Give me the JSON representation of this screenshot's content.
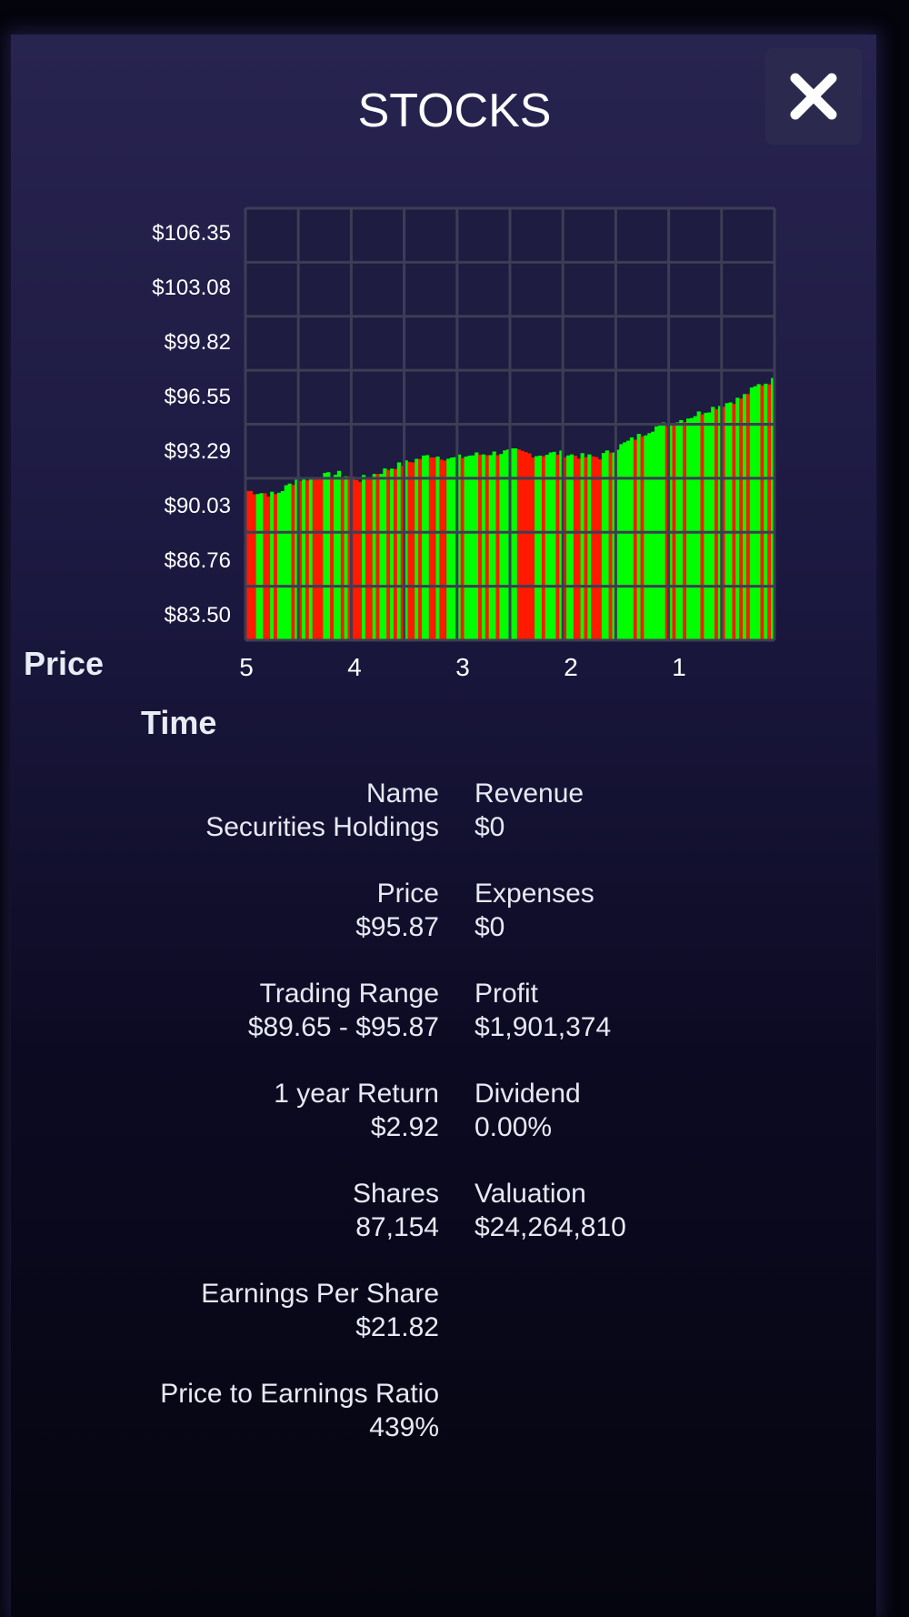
{
  "header": {
    "title": "STOCKS",
    "close_icon": "close-icon"
  },
  "axes": {
    "price_title": "Price",
    "time_title": "Time"
  },
  "chart_data": {
    "type": "bar",
    "ylim": [
      83.5,
      106.35
    ],
    "y_ticks": [
      "$106.35",
      "$103.08",
      "$99.82",
      "$96.55",
      "$93.29",
      "$90.03",
      "$86.76",
      "$83.50"
    ],
    "x_ticks": [
      "5",
      "4",
      "3",
      "2",
      "1"
    ],
    "grid": true,
    "colors": {
      "up": "#00ff00",
      "down": "#ff1a00",
      "grid": "#3d3d55"
    },
    "trend": [
      [
        0,
        91.4
      ],
      [
        8,
        91.2
      ],
      [
        14,
        92.0
      ],
      [
        26,
        92.3
      ],
      [
        32,
        92.0
      ],
      [
        42,
        92.7
      ],
      [
        52,
        93.3
      ],
      [
        58,
        93.1
      ],
      [
        64,
        93.3
      ],
      [
        76,
        93.5
      ],
      [
        82,
        93.3
      ],
      [
        88,
        93.4
      ],
      [
        96,
        93.2
      ],
      [
        100,
        93.2
      ],
      [
        108,
        94.0
      ],
      [
        116,
        94.8
      ],
      [
        124,
        95.2
      ],
      [
        132,
        95.8
      ],
      [
        140,
        96.3
      ],
      [
        145,
        97.0
      ],
      [
        150,
        97.3
      ]
    ],
    "bar_count": 150
  },
  "stats": {
    "left": [
      {
        "label": "Name",
        "value": "Securities Holdings"
      },
      {
        "label": "Price",
        "value": "$95.87"
      },
      {
        "label": "Trading Range",
        "value": "$89.65 - $95.87"
      },
      {
        "label": "1 year Return",
        "value": "$2.92"
      },
      {
        "label": "Shares",
        "value": "87,154"
      },
      {
        "label": "Earnings Per Share",
        "value": "$21.82"
      },
      {
        "label": "Price to Earnings Ratio",
        "value": "439%"
      }
    ],
    "right": [
      {
        "label": "Revenue",
        "value": "$0"
      },
      {
        "label": "Expenses",
        "value": "$0"
      },
      {
        "label": "Profit",
        "value": "$1,901,374"
      },
      {
        "label": "Dividend",
        "value": "0.00%"
      },
      {
        "label": "Valuation",
        "value": "$24,264,810"
      }
    ]
  }
}
